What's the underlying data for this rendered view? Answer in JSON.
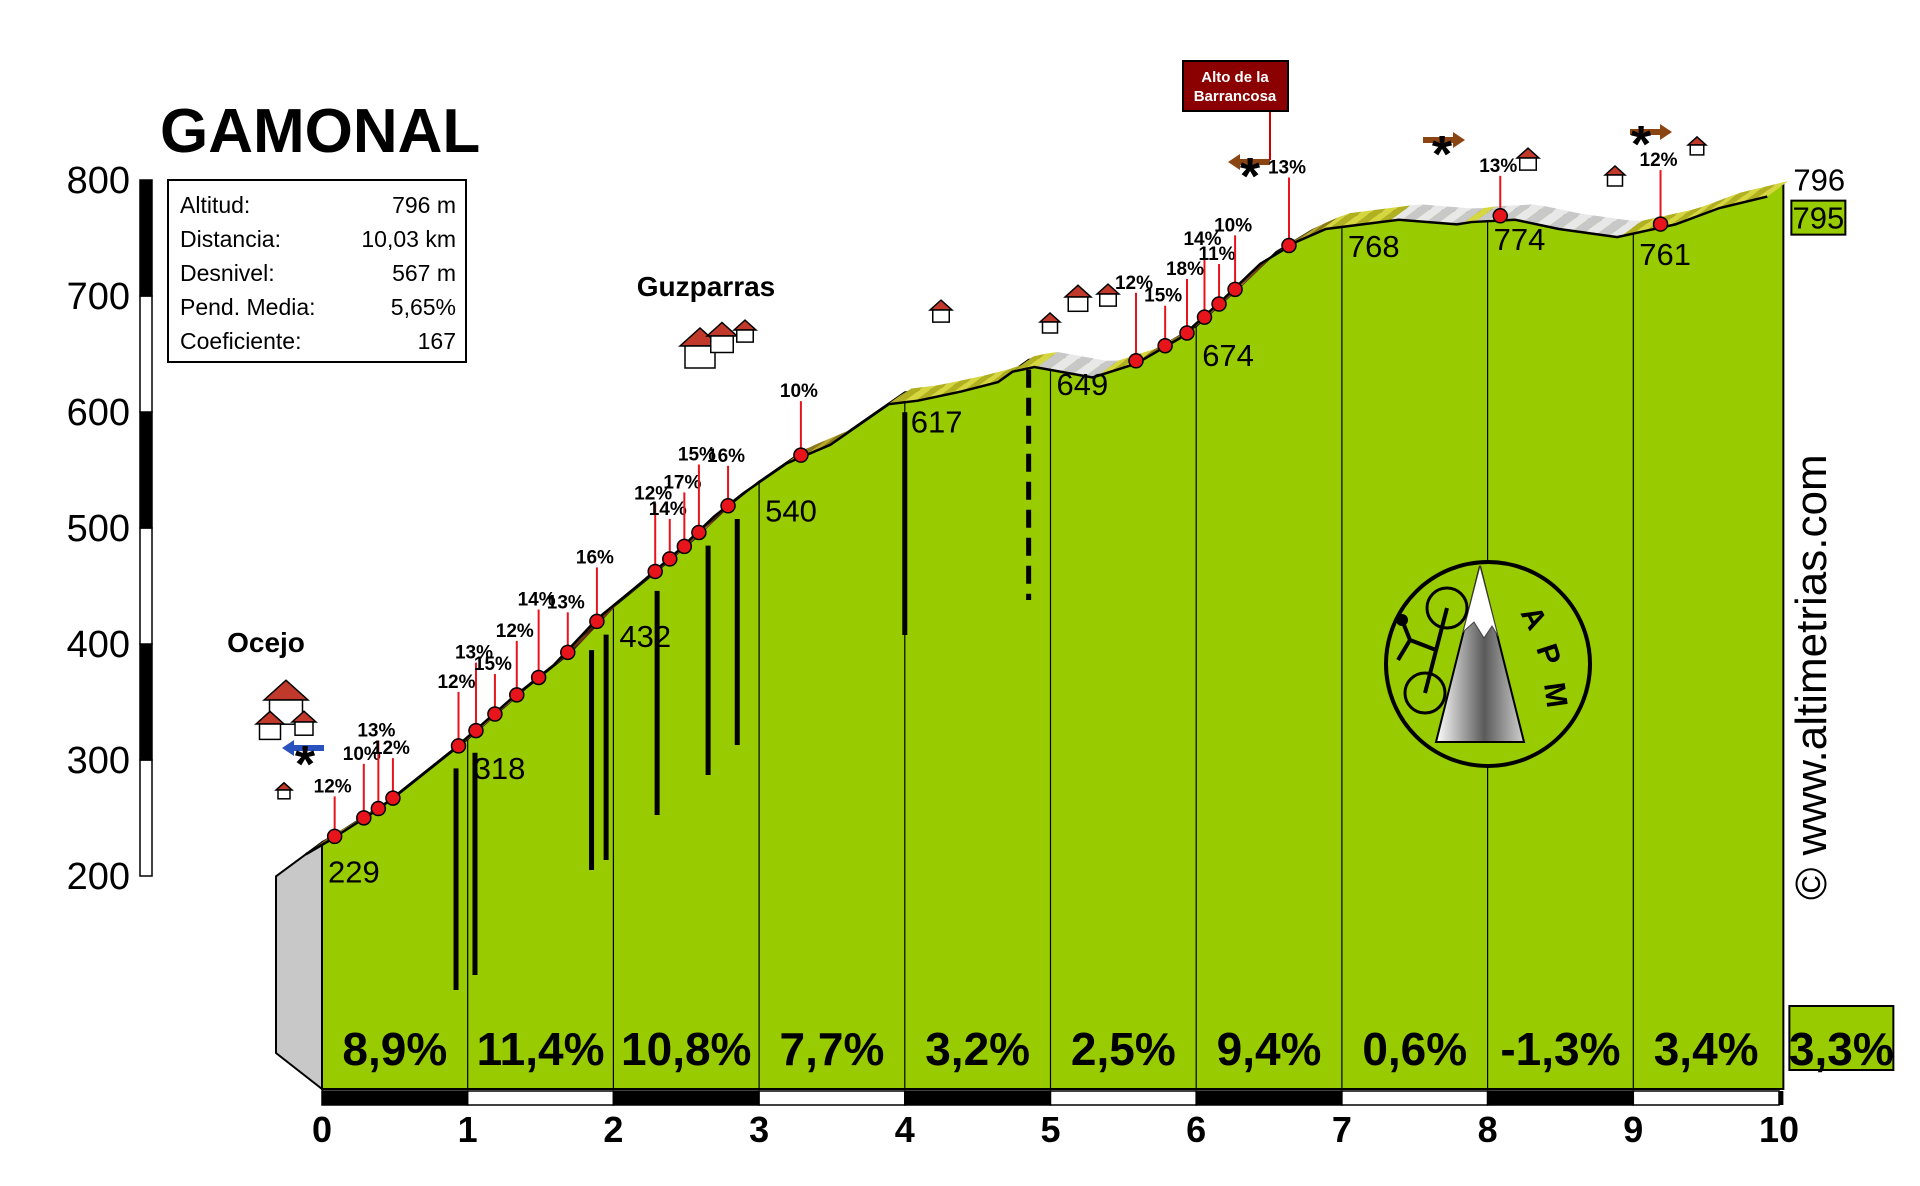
{
  "title": "GAMONAL",
  "stats": [
    {
      "label": "Altitud:",
      "value": "796 m"
    },
    {
      "label": "Distancia:",
      "value": "10,03 km"
    },
    {
      "label": "Desnivel:",
      "value": "567 m"
    },
    {
      "label": "Pend. Media:",
      "value": "5,65%"
    },
    {
      "label": "Coeficiente:",
      "value": "167"
    }
  ],
  "watermark": "© www.altimetrias.com",
  "logo_text": [
    "A",
    "P",
    "M"
  ],
  "colors": {
    "panel_green": "#99cc00",
    "marker_red": "#e8141c",
    "summit_box": "#8b0000",
    "start_face": "#c8c8c8"
  },
  "chart_data": {
    "type": "area",
    "title": "GAMONAL",
    "xlabel": "",
    "ylabel": "",
    "xlim": [
      0,
      10.03
    ],
    "ylim": [
      200,
      800
    ],
    "y_ticks": [
      200,
      300,
      400,
      500,
      600,
      700,
      800
    ],
    "x_ticks": [
      0,
      1,
      2,
      3,
      4,
      5,
      6,
      7,
      8,
      9,
      10
    ],
    "km_elevations": [
      {
        "km": 0,
        "label": "229"
      },
      {
        "km": 1,
        "label": "318"
      },
      {
        "km": 2,
        "label": "432"
      },
      {
        "km": 3,
        "label": "540"
      },
      {
        "km": 4,
        "label": "617"
      },
      {
        "km": 5,
        "label": "649"
      },
      {
        "km": 6,
        "label": "674"
      },
      {
        "km": 7,
        "label": "768"
      },
      {
        "km": 8,
        "label": "774"
      },
      {
        "km": 9,
        "label": "761"
      },
      {
        "km": 10,
        "label": "796"
      }
    ],
    "end_label_box": "795",
    "segment_gradients": [
      "8,9%",
      "11,4%",
      "10,8%",
      "7,7%",
      "3,2%",
      "2,5%",
      "9,4%",
      "0,6%",
      "-1,3%",
      "3,4%",
      "3,3%"
    ],
    "profile": [
      [
        0,
        229
      ],
      [
        0.15,
        240
      ],
      [
        0.5,
        268
      ],
      [
        1,
        318
      ],
      [
        1.4,
        362
      ],
      [
        1.7,
        392
      ],
      [
        2,
        432
      ],
      [
        2.3,
        463
      ],
      [
        2.55,
        490
      ],
      [
        2.8,
        520
      ],
      [
        3,
        540
      ],
      [
        3.3,
        566
      ],
      [
        3.6,
        582
      ],
      [
        4,
        617
      ],
      [
        4.2,
        620
      ],
      [
        4.5,
        628
      ],
      [
        4.75,
        636
      ],
      [
        4.85,
        645
      ],
      [
        5,
        649
      ],
      [
        5.4,
        640
      ],
      [
        5.7,
        652
      ],
      [
        6,
        674
      ],
      [
        6.3,
        708
      ],
      [
        6.55,
        738
      ],
      [
        6.8,
        757
      ],
      [
        7,
        768
      ],
      [
        7.5,
        776
      ],
      [
        7.9,
        772
      ],
      [
        8,
        774
      ],
      [
        8.3,
        776
      ],
      [
        8.6,
        768
      ],
      [
        9,
        761
      ],
      [
        9.4,
        772
      ],
      [
        9.7,
        786
      ],
      [
        10.03,
        796
      ]
    ],
    "steep_points": [
      {
        "km": 0.15,
        "label": "12%"
      },
      {
        "km": 0.35,
        "label": "10%"
      },
      {
        "km": 0.45,
        "label": "13%"
      },
      {
        "km": 0.55,
        "label": "12%"
      },
      {
        "km": 1.0,
        "label": "12%"
      },
      {
        "km": 1.12,
        "label": "13%"
      },
      {
        "km": 1.25,
        "label": "15%"
      },
      {
        "km": 1.4,
        "label": "12%"
      },
      {
        "km": 1.55,
        "label": "14%"
      },
      {
        "km": 1.75,
        "label": "13%"
      },
      {
        "km": 1.95,
        "label": "16%"
      },
      {
        "km": 2.35,
        "label": "12%"
      },
      {
        "km": 2.45,
        "label": "14%"
      },
      {
        "km": 2.55,
        "label": "17%"
      },
      {
        "km": 2.65,
        "label": "15%"
      },
      {
        "km": 2.85,
        "label": "16%"
      },
      {
        "km": 3.35,
        "label": "10%"
      },
      {
        "km": 5.65,
        "label": "12%"
      },
      {
        "km": 5.85,
        "label": "15%"
      },
      {
        "km": 6.0,
        "label": "18%"
      },
      {
        "km": 6.12,
        "label": "14%"
      },
      {
        "km": 6.22,
        "label": "11%"
      },
      {
        "km": 6.33,
        "label": "10%"
      },
      {
        "km": 6.7,
        "label": "13%"
      },
      {
        "km": 8.15,
        "label": "13%"
      },
      {
        "km": 9.25,
        "label": "12%"
      }
    ],
    "places": [
      {
        "name": "Ocejo",
        "km": 0
      },
      {
        "name": "Guzparras",
        "km": 2.9
      }
    ],
    "summit": {
      "name": "Alto de la Barrancosa",
      "lines": [
        "Alto de la",
        "Barrancosa"
      ],
      "km": 6.5
    }
  }
}
